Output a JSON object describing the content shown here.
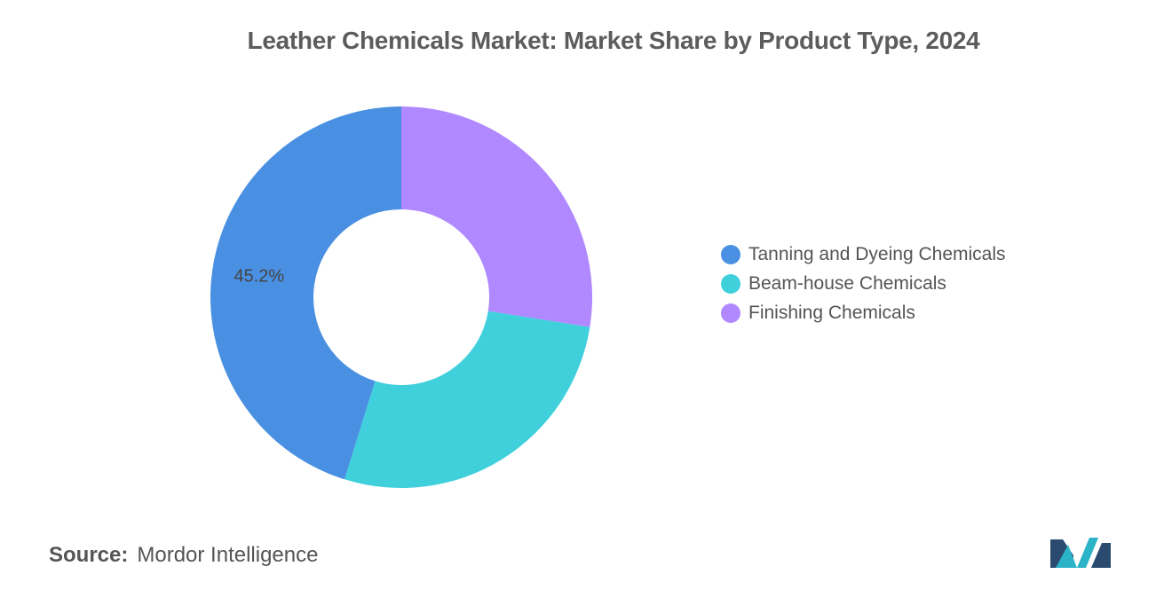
{
  "title": "Leather Chemicals Market: Market Share by Product Type, 2024",
  "chart_data": {
    "type": "pie",
    "donut": true,
    "title": "Leather Chemicals Market: Market Share by Product Type, 2024",
    "slices": [
      {
        "label": "Tanning and Dyeing Chemicals",
        "value": 45.2,
        "color": "#4a90e2",
        "data_label": "45.2%"
      },
      {
        "label": "Beam-house Chemicals",
        "value": 27.3,
        "color": "#40d0dc",
        "data_label": ""
      },
      {
        "label": "Finishing Chemicals",
        "value": 27.5,
        "color": "#b088ff",
        "data_label": ""
      }
    ],
    "legend_position": "right"
  },
  "source": {
    "label": "Source:",
    "text": "Mordor Intelligence"
  },
  "logo": {
    "icon": "mordor-intelligence-logo-icon",
    "colors": [
      "#2b4a6f",
      "#2bb3c7"
    ]
  }
}
